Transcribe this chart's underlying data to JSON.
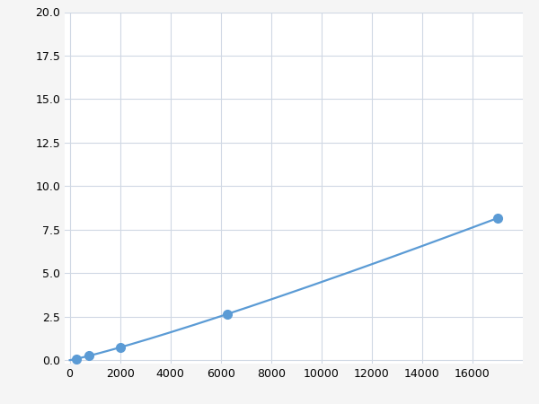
{
  "x": [
    0,
    250,
    500,
    750,
    1000,
    2000,
    6250,
    17000
  ],
  "y": [
    0.0,
    0.1,
    0.15,
    0.2,
    0.28,
    0.65,
    2.5,
    10.1
  ],
  "marker_x": [
    250,
    750,
    2000,
    6250,
    17000
  ],
  "line_color": "#5b9bd5",
  "marker_color": "#5b9bd5",
  "marker_size": 7,
  "linewidth": 1.6,
  "xlim": [
    -200,
    18000
  ],
  "ylim": [
    -0.2,
    20.0
  ],
  "xticks": [
    0,
    2000,
    4000,
    6000,
    8000,
    10000,
    12000,
    14000,
    16000
  ],
  "yticks": [
    0.0,
    2.5,
    5.0,
    7.5,
    10.0,
    12.5,
    15.0,
    17.5,
    20.0
  ],
  "grid_color": "#d0d8e4",
  "background_color": "#ffffff",
  "tick_fontsize": 9,
  "figure_facecolor": "#f5f5f5"
}
